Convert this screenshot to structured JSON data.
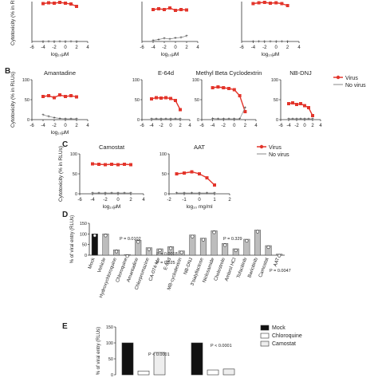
{
  "colors": {
    "virus": "#e3352b",
    "no_virus": "#8a8a8a",
    "axis": "#333333",
    "bar_black": "#111111",
    "bar_grey": "#bdbdbd",
    "bar_light": "#eeeeee"
  },
  "panel_labels": [
    "B",
    "C",
    "D",
    "E"
  ],
  "legend": {
    "virus": "Virus",
    "no_virus": "No virus"
  },
  "chart_data": [
    {
      "id": "A1",
      "type": "line",
      "title": "",
      "ylabel": "Cytotoxicity (% in RL",
      "xlabel": "log₁₀μM",
      "xlim": [
        -6,
        4
      ],
      "ylim": [
        0,
        100
      ],
      "xticks": [
        "-6",
        "-4",
        "-2",
        "0",
        "2",
        "4"
      ],
      "series": [
        {
          "name": "Virus",
          "x": [
            -4,
            -3,
            -2,
            -1,
            0,
            1,
            2
          ],
          "y": [
            95,
            97,
            96,
            98,
            96,
            94,
            88
          ]
        },
        {
          "name": "No virus",
          "x": [
            -4,
            -3,
            -2,
            -1,
            0,
            1,
            2
          ],
          "y": [
            0,
            0,
            0,
            0,
            0,
            0,
            0
          ]
        }
      ]
    },
    {
      "id": "A2",
      "type": "line",
      "title": "",
      "ylabel": "",
      "xlabel": "log₁₀μM",
      "xlim": [
        -6,
        4
      ],
      "ylim": [
        0,
        100
      ],
      "xticks": [
        "-6",
        "-4",
        "-2",
        "0",
        "2",
        "4"
      ],
      "series": [
        {
          "name": "Virus",
          "x": [
            -4,
            -3,
            -2,
            -1,
            0,
            1,
            2
          ],
          "y": [
            80,
            82,
            80,
            84,
            78,
            80,
            79
          ]
        },
        {
          "name": "No virus",
          "x": [
            -4,
            -3,
            -2,
            -1,
            0,
            1,
            2
          ],
          "y": [
            3,
            5,
            8,
            6,
            9,
            10,
            14
          ]
        }
      ]
    },
    {
      "id": "A3",
      "type": "line",
      "title": "",
      "ylabel": "",
      "xlabel": "log₁₀μM",
      "xlim": [
        -6,
        4
      ],
      "ylim": [
        0,
        100
      ],
      "xticks": [
        "-6",
        "-4",
        "-2",
        "0",
        "2",
        "4"
      ],
      "series": [
        {
          "name": "Virus",
          "x": [
            -4,
            -3,
            -2,
            -1,
            0,
            1,
            2
          ],
          "y": [
            95,
            97,
            98,
            96,
            97,
            95,
            90
          ]
        },
        {
          "name": "No virus",
          "x": [
            -4,
            -3,
            -2,
            -1,
            0,
            1,
            2
          ],
          "y": [
            0,
            0,
            0,
            0,
            0,
            0,
            0
          ]
        }
      ]
    },
    {
      "id": "B1",
      "type": "line",
      "title": "Amantadine",
      "ylabel": "Cytotoxicity (% in RLUs)",
      "xlabel": "log₁₀μM",
      "xlim": [
        -6,
        4
      ],
      "ylim": [
        0,
        100
      ],
      "yticks": [
        "0",
        "50",
        "100"
      ],
      "xticks": [
        "-6",
        "-4",
        "-2",
        "0",
        "2",
        "4"
      ],
      "series": [
        {
          "name": "Virus",
          "x": [
            -4,
            -3,
            -2,
            -1,
            0,
            1,
            2
          ],
          "y": [
            58,
            60,
            55,
            62,
            58,
            60,
            57
          ]
        },
        {
          "name": "No virus",
          "x": [
            -4,
            -3,
            -2,
            -1,
            0,
            1,
            2
          ],
          "y": [
            12,
            8,
            5,
            3,
            2,
            2,
            2
          ]
        }
      ]
    },
    {
      "id": "B2",
      "type": "line",
      "title": "E-64d",
      "ylabel": "",
      "xlabel": "",
      "xlim": [
        -6,
        4
      ],
      "ylim": [
        0,
        100
      ],
      "yticks": [
        "0",
        "50",
        "100"
      ],
      "xticks": [
        "-6",
        "-4",
        "-2",
        "0",
        "2",
        "4"
      ],
      "series": [
        {
          "name": "Virus",
          "x": [
            -4,
            -3,
            -2,
            -1,
            0,
            1,
            2
          ],
          "y": [
            52,
            55,
            54,
            55,
            53,
            48,
            25
          ]
        },
        {
          "name": "No virus",
          "x": [
            -4,
            -3,
            -2,
            -1,
            0,
            1,
            2
          ],
          "y": [
            2,
            2,
            2,
            2,
            2,
            2,
            2
          ]
        }
      ]
    },
    {
      "id": "B3",
      "type": "line",
      "title": "Methyl Beta Cyclodextrin",
      "ylabel": "",
      "xlabel": "",
      "xlim": [
        -6,
        4
      ],
      "ylim": [
        0,
        100
      ],
      "yticks": [
        "0",
        "50",
        "100"
      ],
      "xticks": [
        "-6",
        "-4",
        "-2",
        "0",
        "2",
        "4"
      ],
      "series": [
        {
          "name": "Virus",
          "x": [
            -4,
            -3,
            -2,
            -1,
            0,
            1,
            2
          ],
          "y": [
            80,
            82,
            80,
            78,
            75,
            60,
            20
          ]
        },
        {
          "name": "No virus",
          "x": [
            -4,
            -3,
            -2,
            -1,
            0,
            1,
            2
          ],
          "y": [
            3,
            2,
            2,
            2,
            2,
            2,
            30
          ]
        }
      ]
    },
    {
      "id": "B4",
      "type": "line",
      "title": "NB-DNJ",
      "ylabel": "",
      "xlabel": "",
      "xlim": [
        -6,
        4
      ],
      "ylim": [
        0,
        100
      ],
      "yticks": [
        "0",
        "50",
        "100"
      ],
      "xticks": [
        "-6",
        "-4",
        "-2",
        "0",
        "2",
        "4"
      ],
      "series": [
        {
          "name": "Virus",
          "x": [
            -4,
            -3,
            -2,
            -1,
            0,
            1,
            2
          ],
          "y": [
            40,
            42,
            38,
            40,
            35,
            30,
            10
          ]
        },
        {
          "name": "No virus",
          "x": [
            -4,
            -3,
            -2,
            -1,
            0,
            1,
            2
          ],
          "y": [
            2,
            2,
            2,
            2,
            2,
            2,
            2
          ]
        }
      ]
    },
    {
      "id": "C1",
      "type": "line",
      "title": "Camostat",
      "ylabel": "Cytotoxicity (% in RLUs)",
      "xlabel": "log₁₀μM",
      "xlim": [
        -6,
        4
      ],
      "ylim": [
        0,
        100
      ],
      "yticks": [
        "0",
        "50",
        "100"
      ],
      "xticks": [
        "-6",
        "-4",
        "-2",
        "0",
        "2",
        "4"
      ],
      "series": [
        {
          "name": "Virus",
          "x": [
            -4,
            -3,
            -2,
            -1,
            0,
            1,
            2
          ],
          "y": [
            75,
            74,
            73,
            74,
            73,
            74,
            73
          ]
        },
        {
          "name": "No virus",
          "x": [
            -4,
            -3,
            -2,
            -1,
            0,
            1,
            2
          ],
          "y": [
            2,
            2,
            2,
            2,
            2,
            2,
            2
          ]
        }
      ]
    },
    {
      "id": "C2",
      "type": "line",
      "title": "AAT",
      "ylabel": "",
      "xlabel": "log₁₀ mg/ml",
      "xlim": [
        -2,
        2
      ],
      "ylim": [
        0,
        100
      ],
      "yticks": [
        "0",
        "50",
        "100"
      ],
      "xticks": [
        "-2",
        "-1",
        "0",
        "1",
        "2"
      ],
      "series": [
        {
          "name": "Virus",
          "x": [
            -1.5,
            -1,
            -0.5,
            0,
            0.5,
            1
          ],
          "y": [
            50,
            52,
            55,
            50,
            40,
            22
          ]
        },
        {
          "name": "No virus",
          "x": [
            -1.5,
            -1,
            -0.5,
            0,
            0.5,
            1
          ],
          "y": [
            2,
            2,
            2,
            2,
            2,
            2
          ]
        }
      ]
    },
    {
      "id": "D",
      "type": "bar",
      "title": "",
      "ylabel": "% of viral entry (RLUs)",
      "ylim": [
        0,
        150
      ],
      "yticks": [
        "0",
        "50",
        "100",
        "150"
      ],
      "categories": [
        "Mock",
        "Vehicle",
        "Hydroxychloroquine",
        "Chloroquine",
        "Amantadine",
        "Chlorpromazine",
        "CA-074-Me",
        "E-64d",
        "MB-cyclodextrin",
        "NB-DNJ",
        "3'sialyllactose",
        "Niclosamide",
        "Cholestrole",
        "Ambrol HCl",
        "Tofacitinib",
        "Baricitinib",
        "Camostat",
        "AAT"
      ],
      "values": [
        100,
        100,
        25,
        3,
        70,
        35,
        30,
        40,
        20,
        95,
        80,
        115,
        55,
        30,
        75,
        118,
        45,
        5
      ],
      "annotations": [
        "P = 0.0102",
        "P = 0.0018",
        "P = 0.025",
        "P = 0.329",
        "P = 0.0047"
      ]
    },
    {
      "id": "E",
      "type": "bar",
      "title": "",
      "ylabel": "% of viral entry (RLUs)",
      "ylim": [
        0,
        150
      ],
      "yticks": [
        "0",
        "50",
        "100",
        "150"
      ],
      "legend": [
        "Mock",
        "Chloroquine",
        "Camostat"
      ],
      "series": [
        {
          "name": "Mock",
          "values": [
            100,
            100
          ]
        },
        {
          "name": "Chloroquine",
          "values": [
            12,
            15
          ]
        },
        {
          "name": "Camostat",
          "values": [
            70,
            18
          ]
        }
      ],
      "annotations": [
        "P < 0.0001",
        "P < 0.0001"
      ]
    }
  ]
}
